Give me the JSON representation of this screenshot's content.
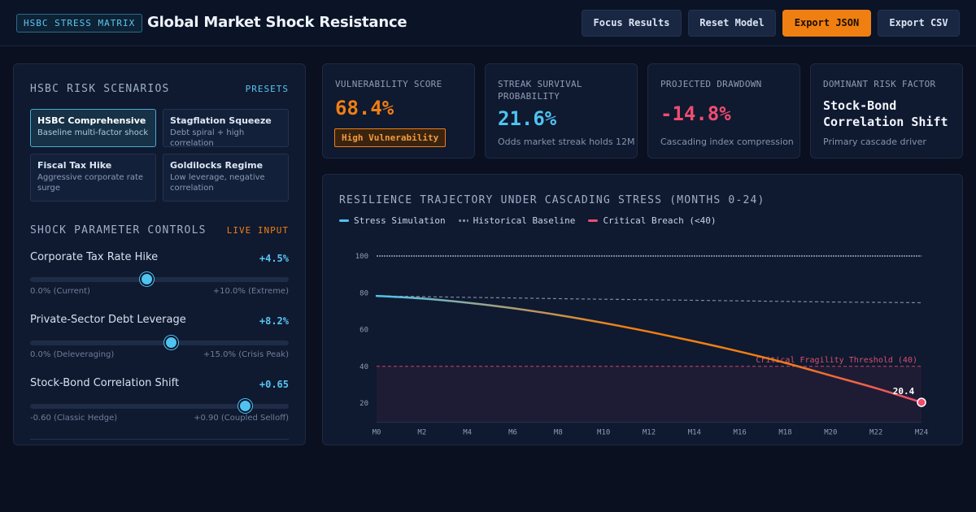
{
  "header": {
    "badge": "HSBC STRESS MATRIX",
    "title": "Global Market Shock Resistance",
    "buttons": {
      "focus": "Focus Results",
      "reset": "Reset Model",
      "export_json": "Export JSON",
      "export_csv": "Export CSV"
    }
  },
  "scenarios": {
    "heading": "HSBC RISK SCENARIOS",
    "tag": "PRESETS",
    "items": [
      {
        "title": "HSBC Comprehensive",
        "desc": "Baseline multi-factor shock",
        "active": true
      },
      {
        "title": "Stagflation Squeeze",
        "desc": "Debt spiral + high correlation",
        "active": false
      },
      {
        "title": "Fiscal Tax Hike",
        "desc": "Aggressive corporate rate surge",
        "active": false
      },
      {
        "title": "Goldilocks Regime",
        "desc": "Low leverage, negative correlation",
        "active": false
      }
    ]
  },
  "controls": {
    "heading": "SHOCK PARAMETER CONTROLS",
    "tag": "LIVE INPUT",
    "items": [
      {
        "label": "Corporate Tax Rate Hike",
        "value": "+4.5%",
        "min": "0.0% (Current)",
        "max": "+10.0% (Extreme)",
        "level": 0.45
      },
      {
        "label": "Private-Sector Debt Leverage",
        "value": "+8.2%",
        "min": "0.0% (Deleveraging)",
        "max": "+15.0% (Crisis Peak)",
        "level": 0.547
      },
      {
        "label": "Stock-Bond Correlation Shift",
        "value": "+0.65",
        "min": "-0.60 (Classic Hedge)",
        "max": "+0.90 (Coupled Selloff)",
        "level": 0.833
      }
    ]
  },
  "metrics": {
    "vulnerability": {
      "label": "VULNERABILITY SCORE",
      "value": "68.4%",
      "badge": "High Vulnerability"
    },
    "survival": {
      "label": "STREAK SURVIVAL PROBABILITY",
      "value": "21.6%",
      "sub": "Odds market streak holds 12M"
    },
    "drawdown": {
      "label": "PROJECTED DRAWDOWN",
      "value": "-14.8%",
      "sub": "Cascading index compression"
    },
    "factor": {
      "label": "DOMINANT RISK FACTOR",
      "value": "Stock-Bond Correlation Shift",
      "sub": "Primary cascade driver"
    }
  },
  "colors": {
    "accent": "#4fc3f0",
    "orange": "#f07f12",
    "critical": "#ef4d6e",
    "baseline": "#7c8aa3"
  },
  "chart_data": {
    "type": "line",
    "title": "RESILIENCE TRAJECTORY UNDER CASCADING STRESS (MONTHS 0-24)",
    "legend": [
      "Stress Simulation",
      "Historical Baseline",
      "Critical Breach (<40)"
    ],
    "threshold": {
      "value": 40,
      "label": "Critical Fragility Threshold (40)"
    },
    "x_ticks": [
      "M0",
      "M2",
      "M4",
      "M6",
      "M8",
      "M10",
      "M12",
      "M14",
      "M16",
      "M18",
      "M20",
      "M22",
      "M24"
    ],
    "y_ticks": [
      100,
      80,
      60,
      40,
      20
    ],
    "ylim": [
      10,
      100
    ],
    "series": [
      {
        "name": "Stress Simulation",
        "x": [
          0,
          2,
          4,
          6,
          8,
          10,
          12,
          14,
          16,
          18,
          20,
          22,
          24
        ],
        "values": [
          78.3,
          76.9,
          74.6,
          71.6,
          67.9,
          63.6,
          58.8,
          53.6,
          48.0,
          41.9,
          35.0,
          28.1,
          20.4
        ]
      },
      {
        "name": "Historical Baseline",
        "x": [
          0,
          2,
          4,
          6,
          8,
          10,
          12,
          14,
          16,
          18,
          20,
          22,
          24
        ],
        "values": [
          78.3,
          77.9,
          77.5,
          77.2,
          76.8,
          76.5,
          76.2,
          75.9,
          75.6,
          75.3,
          75.0,
          74.8,
          74.6
        ]
      }
    ],
    "end_label": "20.4"
  }
}
